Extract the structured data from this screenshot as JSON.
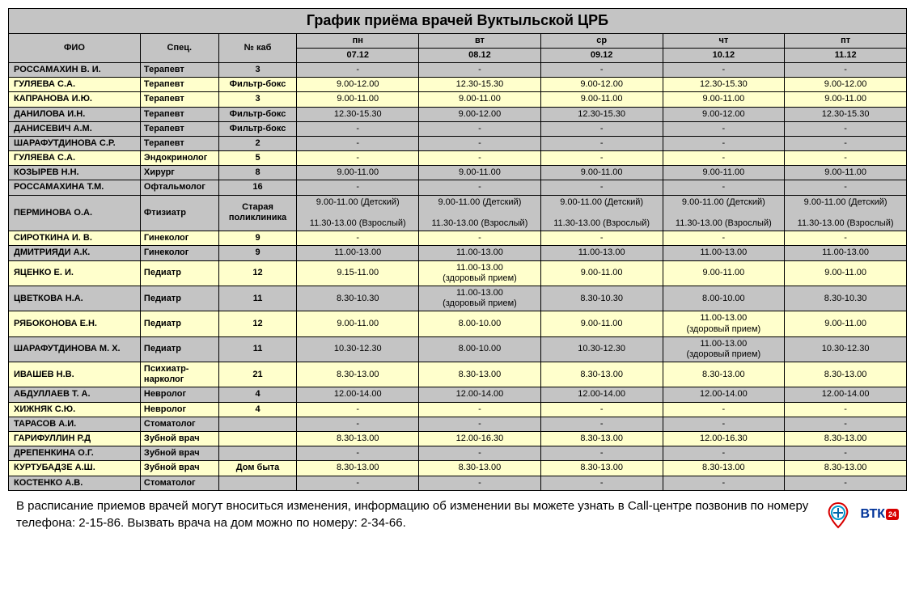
{
  "title": "График приёма врачей Вуктыльской ЦРБ",
  "headers": {
    "fio": "ФИО",
    "spec": "Спец.",
    "cab": "№ каб",
    "days_short": [
      "пн",
      "вт",
      "ср",
      "чт",
      "пт"
    ],
    "dates": [
      "07.12",
      "08.12",
      "09.12",
      "10.12",
      "11.12"
    ]
  },
  "colors": {
    "gray": "#c4c4c4",
    "cream": "#ffffcc",
    "border": "#000000"
  },
  "rows": [
    {
      "c": "gray",
      "name": "РОССАМАХИН В. И.",
      "spec": "Терапевт",
      "cab": "3",
      "d": [
        "-",
        "-",
        "-",
        "-",
        "-"
      ]
    },
    {
      "c": "cream",
      "name": "ГУЛЯЕВА С.А.",
      "spec": "Терапевт",
      "cab": "Фильтр-бокс",
      "d": [
        "9.00-12.00",
        "12.30-15.30",
        "9.00-12.00",
        "12.30-15.30",
        "9.00-12.00"
      ]
    },
    {
      "c": "cream",
      "name": "КАПРАНОВА И.Ю.",
      "spec": "Терапевт",
      "cab": "3",
      "d": [
        "9.00-11.00",
        "9.00-11.00",
        "9.00-11.00",
        "9.00-11.00",
        "9.00-11.00"
      ]
    },
    {
      "c": "gray",
      "name": "ДАНИЛОВА И.Н.",
      "spec": "Терапевт",
      "cab": "Фильтр-бокс",
      "d": [
        "12.30-15.30",
        "9.00-12.00",
        "12.30-15.30",
        "9.00-12.00",
        "12.30-15.30"
      ]
    },
    {
      "c": "gray",
      "name": "ДАНИСЕВИЧ А.М.",
      "spec": "Терапевт",
      "cab": "Фильтр-бокс",
      "d": [
        "-",
        "-",
        "-",
        "-",
        "-"
      ]
    },
    {
      "c": "gray",
      "name": "ШАРАФУТДИНОВА С.Р.",
      "spec": "Терапевт",
      "cab": "2",
      "d": [
        "-",
        "-",
        "-",
        "-",
        "-"
      ]
    },
    {
      "c": "cream",
      "name": "ГУЛЯЕВА С.А.",
      "spec": "Эндокринолог",
      "cab": "5",
      "d": [
        "-",
        "-",
        "-",
        "-",
        "-"
      ]
    },
    {
      "c": "gray",
      "name": "КОЗЫРЕВ Н.Н.",
      "spec": "Хирург",
      "cab": "8",
      "d": [
        "9.00-11.00",
        "9.00-11.00",
        "9.00-11.00",
        "9.00-11.00",
        "9.00-11.00"
      ]
    },
    {
      "c": "gray",
      "name": "РОССАМАХИНА Т.М.",
      "spec": "Офтальмолог",
      "cab": "16",
      "d": [
        "-",
        "-",
        "-",
        "-",
        "-"
      ]
    },
    {
      "c": "gray",
      "name": "ПЕРМИНОВА О.А.",
      "spec": "Фтизиатр",
      "cab": "Старая поликлиника",
      "d": [
        "9.00-11.00 (Детский)\n\n11.30-13.00 (Взрослый)",
        "9.00-11.00 (Детский)\n\n11.30-13.00 (Взрослый)",
        "9.00-11.00 (Детский)\n\n11.30-13.00 (Взрослый)",
        "9.00-11.00 (Детский)\n\n11.30-13.00 (Взрослый)",
        "9.00-11.00 (Детский)\n\n11.30-13.00 (Взрослый)"
      ]
    },
    {
      "c": "cream",
      "name": "СИРОТКИНА И. В.",
      "spec": "Гинеколог",
      "cab": "9",
      "d": [
        "-",
        "-",
        "-",
        "-",
        "-"
      ]
    },
    {
      "c": "gray",
      "name": "ДМИТРИЯДИ А.К.",
      "spec": "Гинеколог",
      "cab": "9",
      "d": [
        "11.00-13.00",
        "11.00-13.00",
        "11.00-13.00",
        "11.00-13.00",
        "11.00-13.00"
      ]
    },
    {
      "c": "cream",
      "name": "ЯЦЕНКО Е. И.",
      "spec": "Педиатр",
      "cab": "12",
      "d": [
        "9.15-11.00",
        "11.00-13.00\n(здоровый прием)",
        "9.00-11.00",
        "9.00-11.00",
        "9.00-11.00"
      ]
    },
    {
      "c": "gray",
      "name": "ЦВЕТКОВА Н.А.",
      "spec": "Педиатр",
      "cab": "11",
      "d": [
        "8.30-10.30",
        "11.00-13.00\n(здоровый прием)",
        "8.30-10.30",
        "8.00-10.00",
        "8.30-10.30"
      ]
    },
    {
      "c": "cream",
      "name": "РЯБОКОНОВА Е.Н.",
      "spec": "Педиатр",
      "cab": "12",
      "d": [
        "9.00-11.00",
        "8.00-10.00",
        "9.00-11.00",
        "11.00-13.00\n(здоровый прием)",
        "9.00-11.00"
      ]
    },
    {
      "c": "gray",
      "name": "ШАРАФУТДИНОВА М. Х.",
      "spec": "Педиатр",
      "cab": "11",
      "d": [
        "10.30-12.30",
        "8.00-10.00",
        "10.30-12.30",
        "11.00-13.00\n(здоровый прием)",
        "10.30-12.30"
      ]
    },
    {
      "c": "cream",
      "name": "ИВАШЕВ Н.В.",
      "spec": "Психиатр-нарколог",
      "cab": "21",
      "d": [
        "8.30-13.00",
        "8.30-13.00",
        "8.30-13.00",
        "8.30-13.00",
        "8.30-13.00"
      ]
    },
    {
      "c": "gray",
      "name": "АБДУЛЛАЕВ Т. А.",
      "spec": "Невролог",
      "cab": "4",
      "d": [
        "12.00-14.00",
        "12.00-14.00",
        "12.00-14.00",
        "12.00-14.00",
        "12.00-14.00"
      ]
    },
    {
      "c": "cream",
      "name": "ХИЖНЯК С.Ю.",
      "spec": "Невролог",
      "cab": "4",
      "d": [
        "-",
        "-",
        "-",
        "-",
        "-"
      ]
    },
    {
      "c": "gray",
      "name": "ТАРАСОВ А.И.",
      "spec": "Стоматолог",
      "cab": "",
      "d": [
        "-",
        "-",
        "-",
        "-",
        "-"
      ]
    },
    {
      "c": "cream",
      "name": "ГАРИФУЛЛИН Р.Д",
      "spec": "Зубной врач",
      "cab": "",
      "d": [
        "8.30-13.00",
        "12.00-16.30",
        "8.30-13.00",
        "12.00-16.30",
        "8.30-13.00"
      ]
    },
    {
      "c": "gray",
      "name": "ДРЕПЕНКИНА О.Г.",
      "spec": "Зубной врач",
      "cab": "",
      "d": [
        "-",
        "-",
        "-",
        "-",
        "-"
      ]
    },
    {
      "c": "cream",
      "name": "КУРТУБАДЗЕ А.Ш.",
      "spec": "Зубной врач",
      "cab": "Дом быта",
      "d": [
        "8.30-13.00",
        "8.30-13.00",
        "8.30-13.00",
        "8.30-13.00",
        "8.30-13.00"
      ]
    },
    {
      "c": "gray",
      "name": "КОСТЕНКО А.В.",
      "spec": "Стоматолог",
      "cab": "",
      "d": [
        "-",
        "-",
        "-",
        "-",
        "-"
      ]
    }
  ],
  "footer_text": "В расписание приемов врачей могут вноситься изменения, информацию об изменении вы можете узнать в Call-центре позвонив по номеру телефона: 2-15-86. Вызвать врача на дом можно по номеру: 2-34-66.",
  "btk_label": "ВТК",
  "btk_badge": "24"
}
